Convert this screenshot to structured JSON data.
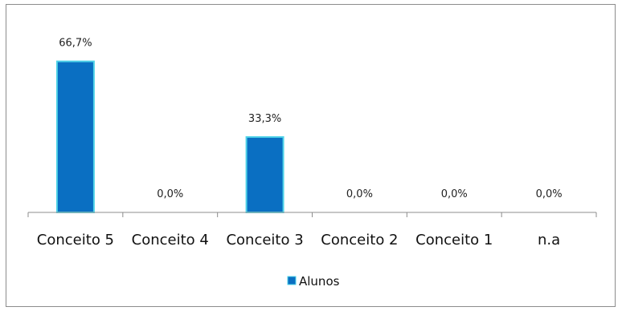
{
  "chart_data": {
    "type": "bar",
    "categories": [
      "Conceito 5",
      "Conceito 4",
      "Conceito 3",
      "Conceito 2",
      "Conceito 1",
      "n.a"
    ],
    "series": [
      {
        "name": "Alunos",
        "values": [
          66.7,
          0.0,
          33.3,
          0.0,
          0.0,
          0.0
        ]
      }
    ],
    "data_labels": [
      "66,7%",
      "0,0%",
      "33,3%",
      "0,0%",
      "0,0%",
      "0,0%"
    ],
    "ylim": [
      0,
      80
    ],
    "grid": false,
    "legend": "bottom",
    "colors": {
      "bar_fill": "#0a6fc2",
      "bar_edge": "#4fd3e8",
      "axis": "#8c8c8c"
    }
  }
}
